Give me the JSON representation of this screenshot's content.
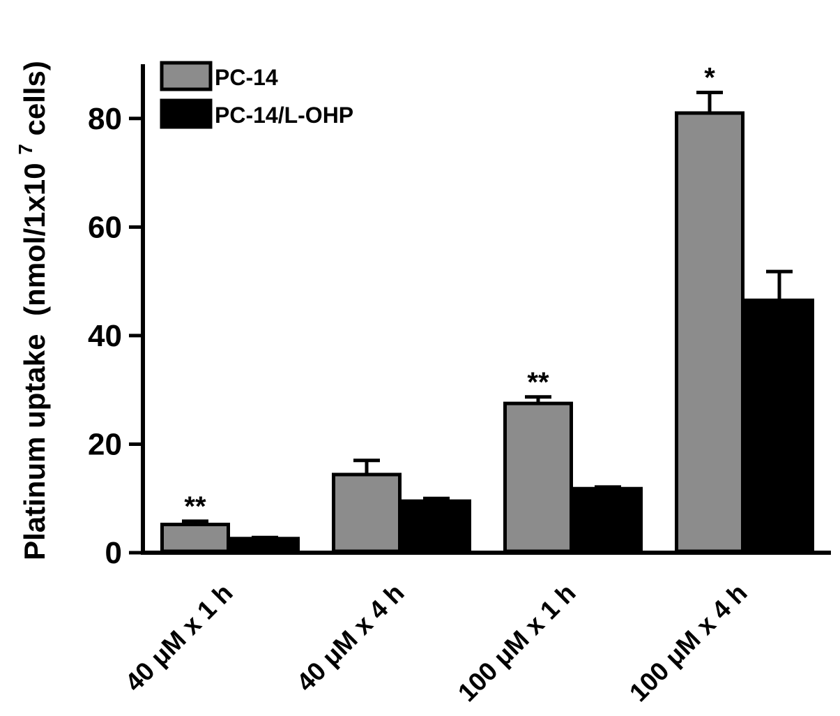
{
  "chart_data": {
    "type": "bar",
    "categories": [
      "40 μM x 1 h",
      "40 μM x 4 h",
      "100 μM x 1 h",
      "100 μM x 4 h"
    ],
    "series": [
      {
        "name": "PC-14",
        "values": [
          5.2,
          14.4,
          27.5,
          81.0
        ],
        "errors": [
          0.6,
          2.6,
          1.2,
          3.8
        ],
        "color": "#8c8c8c"
      },
      {
        "name": "PC-14/L-OHP",
        "values": [
          2.6,
          9.5,
          11.8,
          46.5
        ],
        "errors": [
          0.2,
          0.5,
          0.3,
          5.3
        ],
        "color": "#000000"
      }
    ],
    "significance": [
      "**",
      "",
      "**",
      "*"
    ],
    "ylabel_main": "Platinum uptake",
    "ylabel_unit_prefix": "(nmol/1x10",
    "ylabel_unit_exp": "7",
    "ylabel_unit_suffix": " cells)",
    "yticks": [
      "0",
      "20",
      "40",
      "60",
      "80"
    ],
    "ylim": [
      0,
      90
    ],
    "grid": false,
    "legend_position": "top-left"
  }
}
